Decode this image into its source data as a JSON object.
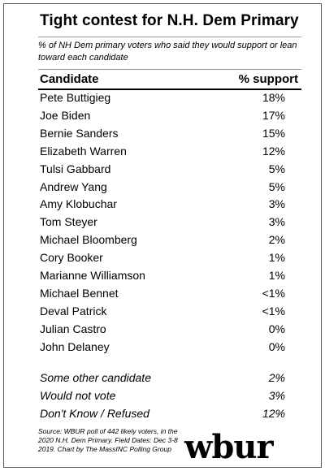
{
  "title": "Tight contest for N.H. Dem Primary",
  "subtitle": "% of NH Dem primary voters who said they would support or lean toward each candidate",
  "header": {
    "candidate": "Candidate",
    "support": "% support"
  },
  "rows": [
    {
      "name": "Pete Buttigieg",
      "value": "18%"
    },
    {
      "name": "Joe Biden",
      "value": "17%"
    },
    {
      "name": "Bernie Sanders",
      "value": "15%"
    },
    {
      "name": "Elizabeth Warren",
      "value": "12%"
    },
    {
      "name": "Tulsi Gabbard",
      "value": "5%"
    },
    {
      "name": "Andrew Yang",
      "value": "5%"
    },
    {
      "name": "Amy Klobuchar",
      "value": "3%"
    },
    {
      "name": "Tom Steyer",
      "value": "3%"
    },
    {
      "name": "Michael Bloomberg",
      "value": "2%"
    },
    {
      "name": "Cory Booker",
      "value": "1%"
    },
    {
      "name": "Marianne Williamson",
      "value": "1%"
    },
    {
      "name": "Michael Bennet",
      "value": "<1%"
    },
    {
      "name": "Deval Patrick",
      "value": "<1%"
    },
    {
      "name": "Julian Castro",
      "value": "0%"
    },
    {
      "name": "John Delaney",
      "value": "0%"
    }
  ],
  "other_rows": [
    {
      "name": "Some other candidate",
      "value": "2%"
    },
    {
      "name": "Would not vote",
      "value": "3%"
    },
    {
      "name": "Don't Know / Refused",
      "value": "12%"
    }
  ],
  "source": "Source: WBUR poll of 442 likely voters, in the 2020 N.H. Dem Primary. Field Dates: Dec 3-8 2019. Chart by The MassINC Polling Group",
  "logo": "wbur",
  "chart_data": {
    "type": "table",
    "title": "Tight contest for N.H. Dem Primary",
    "subtitle": "% of NH Dem primary voters who said they would support or lean toward each candidate",
    "columns": [
      "Candidate",
      "% support"
    ],
    "rows": [
      [
        "Pete Buttigieg",
        "18%"
      ],
      [
        "Joe Biden",
        "17%"
      ],
      [
        "Bernie Sanders",
        "15%"
      ],
      [
        "Elizabeth Warren",
        "12%"
      ],
      [
        "Tulsi Gabbard",
        "5%"
      ],
      [
        "Andrew Yang",
        "5%"
      ],
      [
        "Amy Klobuchar",
        "3%"
      ],
      [
        "Tom Steyer",
        "3%"
      ],
      [
        "Michael Bloomberg",
        "2%"
      ],
      [
        "Cory Booker",
        "1%"
      ],
      [
        "Marianne Williamson",
        "1%"
      ],
      [
        "Michael Bennet",
        "<1%"
      ],
      [
        "Deval Patrick",
        "<1%"
      ],
      [
        "Julian Castro",
        "0%"
      ],
      [
        "John Delaney",
        "0%"
      ],
      [
        "Some other candidate",
        "2%"
      ],
      [
        "Would not vote",
        "3%"
      ],
      [
        "Don't Know / Refused",
        "12%"
      ]
    ]
  }
}
